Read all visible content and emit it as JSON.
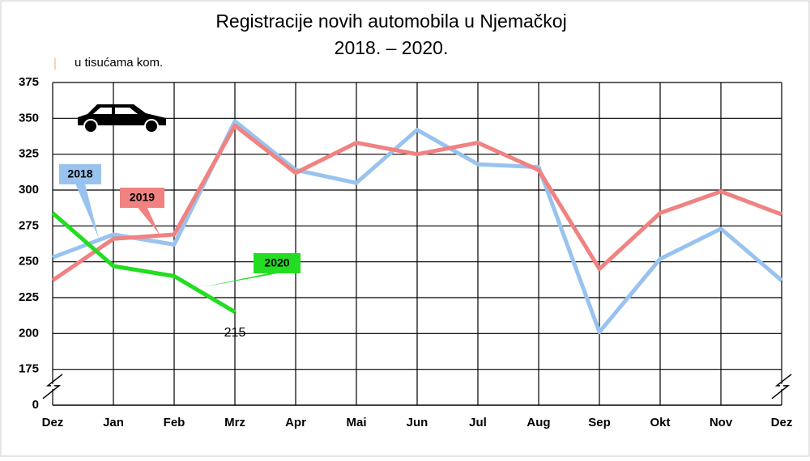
{
  "chart_data": {
    "type": "line",
    "title_lines": [
      "Registracije novih automobila u Njemačkoj",
      "2018. – 2020."
    ],
    "unit_label": "u tisućama kom.",
    "categories": [
      "Dez",
      "Jan",
      "Feb",
      "Mrz",
      "Apr",
      "Mai",
      "Jun",
      "Jul",
      "Aug",
      "Sep",
      "Okt",
      "Nov",
      "Dez"
    ],
    "series": [
      {
        "name": "2018",
        "color": "#99c3ef",
        "values": [
          253,
          269,
          262,
          348,
          314,
          305,
          342,
          318,
          316,
          201,
          252,
          273,
          237
        ]
      },
      {
        "name": "2019",
        "color": "#f08282",
        "values": [
          237,
          266,
          269,
          345,
          312,
          333,
          325,
          333,
          314,
          245,
          284,
          299,
          283
        ]
      },
      {
        "name": "2020",
        "color": "#22dd22",
        "values": [
          284,
          247,
          240,
          215,
          null,
          null,
          null,
          null,
          null,
          null,
          null,
          null,
          null
        ],
        "label_last": true
      }
    ],
    "ylim": [
      0,
      375
    ],
    "yticks": [
      0,
      175,
      200,
      225,
      250,
      275,
      300,
      325,
      350,
      375
    ],
    "y_break": [
      0,
      175
    ],
    "grid": true
  }
}
